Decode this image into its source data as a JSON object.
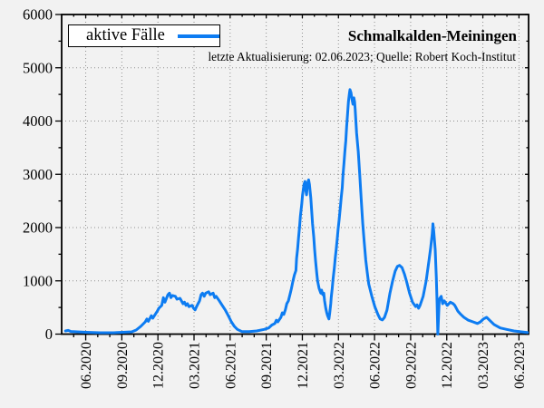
{
  "header": {
    "title": "Schmalkalden-Meiningen",
    "subtitle": "letzte Aktualisierung: 02.06.2023; Quelle: Robert Koch-Institut"
  },
  "legend": {
    "label": "aktive Fälle"
  },
  "colors": {
    "line": "#0d7cf2",
    "background": "#f2f2f2",
    "grid": "#8f8f8f",
    "axis": "#000000",
    "legend_background": "#ffffff"
  },
  "chart_data": {
    "type": "line",
    "title": "Schmalkalden-Meiningen",
    "subtitle": "letzte Aktualisierung: 02.06.2023; Quelle: Robert Koch-Institut",
    "series_name": "aktive Fälle",
    "legend_position": "top-left",
    "grid": "dotted gridlines at major ticks on both axes",
    "x_axis": {
      "unit": "months since 2020-04-01 (fractional)",
      "range": [
        0,
        38.8
      ],
      "tick_positions": [
        2,
        5,
        8,
        11,
        14,
        17,
        20,
        23,
        26,
        29,
        32,
        35,
        38
      ],
      "tick_labels": [
        "06.2020",
        "09.2020",
        "12.2020",
        "03.2021",
        "06.2021",
        "09.2021",
        "12.2021",
        "03.2022",
        "06.2022",
        "09.2022",
        "12.2022",
        "03.2023",
        "06.2023"
      ],
      "minor_tick_every": 1,
      "tick_label_rotation_deg": -90
    },
    "y_axis": {
      "range": [
        0,
        6000
      ],
      "tick_step": 1000,
      "minor_tick_step": 500,
      "tick_labels": [
        "0",
        "1000",
        "2000",
        "3000",
        "4000",
        "5000",
        "6000"
      ]
    },
    "points": [
      [
        0.32,
        60
      ],
      [
        0.55,
        70
      ],
      [
        0.77,
        50
      ],
      [
        1.3,
        42
      ],
      [
        2.05,
        34
      ],
      [
        3.18,
        26
      ],
      [
        4.31,
        26
      ],
      [
        5.06,
        34
      ],
      [
        5.82,
        43
      ],
      [
        6.19,
        77
      ],
      [
        6.57,
        145
      ],
      [
        6.95,
        230
      ],
      [
        7.08,
        285
      ],
      [
        7.2,
        240
      ],
      [
        7.45,
        345
      ],
      [
        7.57,
        300
      ],
      [
        7.95,
        430
      ],
      [
        8.08,
        485
      ],
      [
        8.32,
        540
      ],
      [
        8.45,
        685
      ],
      [
        8.58,
        600
      ],
      [
        8.83,
        740
      ],
      [
        8.96,
        770
      ],
      [
        9.08,
        685
      ],
      [
        9.21,
        725
      ],
      [
        9.45,
        710
      ],
      [
        9.58,
        655
      ],
      [
        9.83,
        672
      ],
      [
        10.09,
        570
      ],
      [
        10.21,
        600
      ],
      [
        10.33,
        540
      ],
      [
        10.46,
        570
      ],
      [
        10.58,
        515
      ],
      [
        10.84,
        540
      ],
      [
        10.96,
        485
      ],
      [
        11.09,
        455
      ],
      [
        11.21,
        515
      ],
      [
        11.33,
        570
      ],
      [
        11.46,
        625
      ],
      [
        11.59,
        740
      ],
      [
        11.71,
        770
      ],
      [
        11.84,
        710
      ],
      [
        11.97,
        770
      ],
      [
        12.21,
        795
      ],
      [
        12.34,
        740
      ],
      [
        12.59,
        770
      ],
      [
        12.72,
        685
      ],
      [
        12.84,
        710
      ],
      [
        13.1,
        625
      ],
      [
        13.34,
        540
      ],
      [
        13.59,
        455
      ],
      [
        13.85,
        345
      ],
      [
        14.1,
        230
      ],
      [
        14.35,
        145
      ],
      [
        14.6,
        88
      ],
      [
        14.98,
        48
      ],
      [
        15.58,
        48
      ],
      [
        16.21,
        60
      ],
      [
        16.83,
        88
      ],
      [
        17.21,
        115
      ],
      [
        17.46,
        170
      ],
      [
        17.71,
        200
      ],
      [
        17.84,
        260
      ],
      [
        17.96,
        230
      ],
      [
        18.22,
        315
      ],
      [
        18.34,
        400
      ],
      [
        18.46,
        370
      ],
      [
        18.59,
        455
      ],
      [
        18.71,
        570
      ],
      [
        18.84,
        625
      ],
      [
        18.97,
        740
      ],
      [
        19.09,
        855
      ],
      [
        19.22,
        995
      ],
      [
        19.34,
        1110
      ],
      [
        19.47,
        1195
      ],
      [
        19.52,
        1420
      ],
      [
        19.6,
        1590
      ],
      [
        19.69,
        1815
      ],
      [
        19.77,
        2015
      ],
      [
        19.84,
        2215
      ],
      [
        19.95,
        2440
      ],
      [
        20.02,
        2615
      ],
      [
        20.14,
        2810
      ],
      [
        20.22,
        2865
      ],
      [
        20.29,
        2700
      ],
      [
        20.35,
        2615
      ],
      [
        20.44,
        2840
      ],
      [
        20.52,
        2895
      ],
      [
        20.59,
        2810
      ],
      [
        20.7,
        2555
      ],
      [
        20.77,
        2330
      ],
      [
        20.85,
        2075
      ],
      [
        20.95,
        1815
      ],
      [
        21.02,
        1590
      ],
      [
        21.1,
        1365
      ],
      [
        21.2,
        1135
      ],
      [
        21.27,
        995
      ],
      [
        21.4,
        855
      ],
      [
        21.53,
        770
      ],
      [
        21.6,
        825
      ],
      [
        21.7,
        740
      ],
      [
        21.78,
        770
      ],
      [
        21.85,
        625
      ],
      [
        21.95,
        485
      ],
      [
        22.03,
        400
      ],
      [
        22.1,
        345
      ],
      [
        22.21,
        285
      ],
      [
        22.28,
        400
      ],
      [
        22.36,
        570
      ],
      [
        22.4,
        685
      ],
      [
        22.48,
        855
      ],
      [
        22.55,
        1025
      ],
      [
        22.66,
        1250
      ],
      [
        22.73,
        1420
      ],
      [
        22.81,
        1590
      ],
      [
        22.91,
        1815
      ],
      [
        22.98,
        1985
      ],
      [
        23.06,
        2155
      ],
      [
        23.16,
        2385
      ],
      [
        23.23,
        2555
      ],
      [
        23.32,
        2750
      ],
      [
        23.38,
        2985
      ],
      [
        23.46,
        3210
      ],
      [
        23.53,
        3415
      ],
      [
        23.61,
        3630
      ],
      [
        23.68,
        3890
      ],
      [
        23.76,
        4145
      ],
      [
        23.83,
        4365
      ],
      [
        23.91,
        4520
      ],
      [
        23.96,
        4590
      ],
      [
        24.04,
        4535
      ],
      [
        24.13,
        4400
      ],
      [
        24.21,
        4315
      ],
      [
        24.28,
        4435
      ],
      [
        24.34,
        4365
      ],
      [
        24.39,
        4230
      ],
      [
        24.51,
        3775
      ],
      [
        24.64,
        3435
      ],
      [
        24.77,
        2985
      ],
      [
        24.89,
        2530
      ],
      [
        25.02,
        2075
      ],
      [
        25.14,
        1730
      ],
      [
        25.27,
        1390
      ],
      [
        25.39,
        1165
      ],
      [
        25.52,
        940
      ],
      [
        25.77,
        710
      ],
      [
        26.02,
        515
      ],
      [
        26.28,
        370
      ],
      [
        26.47,
        285
      ],
      [
        26.65,
        265
      ],
      [
        26.83,
        315
      ],
      [
        27.03,
        450
      ],
      [
        27.28,
        770
      ],
      [
        27.5,
        995
      ],
      [
        27.71,
        1180
      ],
      [
        27.9,
        1270
      ],
      [
        28.08,
        1290
      ],
      [
        28.28,
        1250
      ],
      [
        28.48,
        1130
      ],
      [
        28.65,
        995
      ],
      [
        28.91,
        770
      ],
      [
        29.16,
        600
      ],
      [
        29.41,
        515
      ],
      [
        29.53,
        550
      ],
      [
        29.66,
        485
      ],
      [
        29.78,
        540
      ],
      [
        30.04,
        710
      ],
      [
        30.29,
        995
      ],
      [
        30.53,
        1390
      ],
      [
        30.66,
        1620
      ],
      [
        30.79,
        1880
      ],
      [
        30.85,
        2070
      ],
      [
        30.92,
        1930
      ],
      [
        31.04,
        1590
      ],
      [
        31.13,
        1080
      ],
      [
        31.2,
        570
      ],
      [
        31.26,
        0
      ],
      [
        31.38,
        655
      ],
      [
        31.54,
        710
      ],
      [
        31.66,
        570
      ],
      [
        31.79,
        625
      ],
      [
        32.04,
        540
      ],
      [
        32.3,
        600
      ],
      [
        32.54,
        570
      ],
      [
        32.67,
        540
      ],
      [
        32.92,
        430
      ],
      [
        33.17,
        370
      ],
      [
        33.43,
        315
      ],
      [
        33.8,
        260
      ],
      [
        34.18,
        230
      ],
      [
        34.55,
        200
      ],
      [
        34.8,
        230
      ],
      [
        35.05,
        285
      ],
      [
        35.31,
        315
      ],
      [
        35.56,
        260
      ],
      [
        35.93,
        180
      ],
      [
        36.44,
        115
      ],
      [
        36.93,
        90
      ],
      [
        37.57,
        60
      ],
      [
        38.19,
        43
      ],
      [
        38.7,
        30
      ]
    ]
  }
}
